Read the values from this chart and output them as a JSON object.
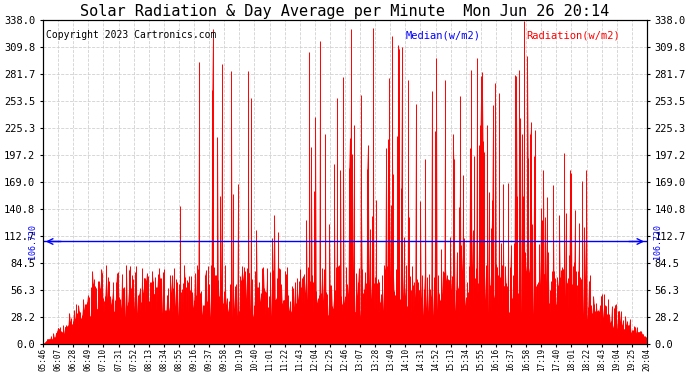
{
  "title": "Solar Radiation & Day Average per Minute  Mon Jun 26 20:14",
  "copyright": "Copyright 2023 Cartronics.com",
  "legend_median": "Median(w/m2)",
  "legend_radiation": "Radiation(w/m2)",
  "median_value": 106.72,
  "median_label": "106.720",
  "y_ticks": [
    0.0,
    28.2,
    56.3,
    84.5,
    112.7,
    140.8,
    169.0,
    197.2,
    225.3,
    253.5,
    281.7,
    309.8,
    338.0
  ],
  "y_max": 338.0,
  "y_min": 0.0,
  "bar_color": "#FF0000",
  "median_color": "#0000FF",
  "background_color": "#FFFFFF",
  "grid_color": "#CCCCCC",
  "title_fontsize": 11,
  "copyright_fontsize": 7,
  "x_tick_fontsize": 5.5,
  "y_tick_fontsize": 7.5,
  "x_labels": [
    "05:46",
    "06:07",
    "06:28",
    "06:49",
    "07:10",
    "07:31",
    "07:52",
    "08:13",
    "08:34",
    "08:55",
    "09:16",
    "09:37",
    "09:58",
    "10:19",
    "10:40",
    "11:01",
    "11:22",
    "11:43",
    "12:04",
    "12:25",
    "12:46",
    "13:07",
    "13:28",
    "13:49",
    "14:10",
    "14:31",
    "14:52",
    "15:13",
    "15:34",
    "15:55",
    "16:16",
    "16:37",
    "16:58",
    "17:19",
    "17:40",
    "18:01",
    "18:22",
    "18:43",
    "19:04",
    "19:25",
    "20:04"
  ],
  "n_points": 870
}
